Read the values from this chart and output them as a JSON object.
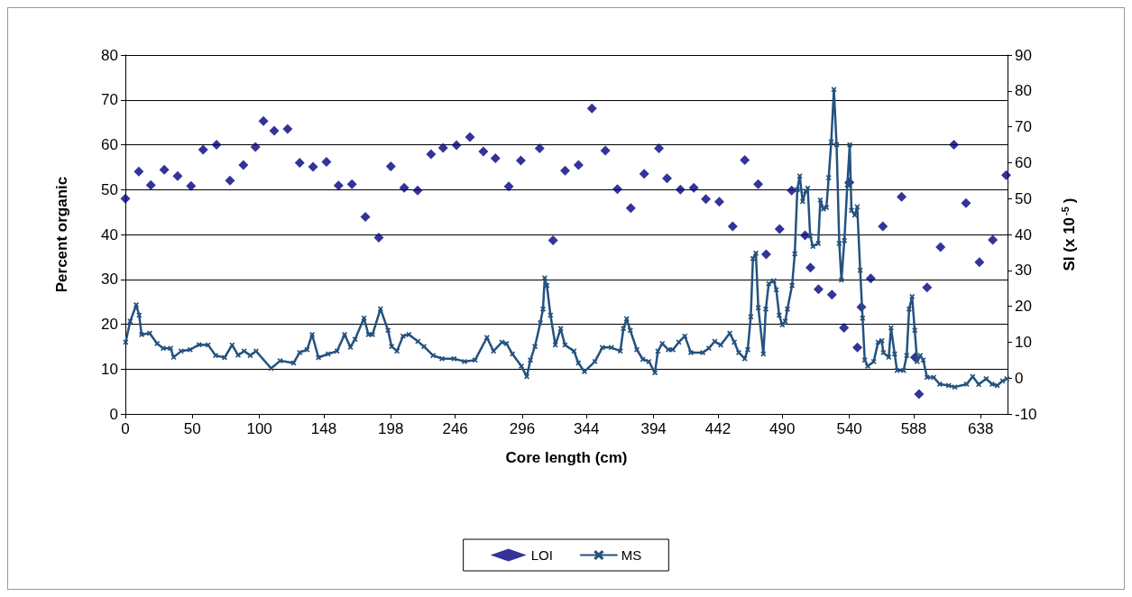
{
  "chart_data": {
    "type": "scatter",
    "xlabel": "Core length (cm)",
    "ylabel": "Percent organic",
    "y2label": "SI (x 10$^{-5}$)",
    "xlim": [
      0,
      658
    ],
    "xticks": [
      0,
      50,
      100,
      148,
      198,
      246,
      296,
      344,
      394,
      442,
      490,
      540,
      588,
      638
    ],
    "ylim": [
      0,
      80
    ],
    "yticks": [
      0,
      10,
      20,
      30,
      40,
      50,
      60,
      70,
      80
    ],
    "y2lim": [
      -10,
      90
    ],
    "y2ticks": [
      -10,
      0,
      10,
      20,
      30,
      40,
      50,
      60,
      70,
      80,
      90
    ],
    "grid": "y",
    "legend": "bottom",
    "series": [
      {
        "name": "LOI",
        "marker": "diamond",
        "color": "#000080",
        "x": [
          0,
          10,
          19,
          29,
          39,
          49,
          58,
          68,
          78,
          88,
          97,
          103,
          111,
          121,
          130,
          140,
          150,
          159,
          169,
          179,
          189,
          198,
          208,
          218,
          228,
          237,
          247,
          257,
          267,
          276,
          286,
          295,
          309,
          319,
          328,
          338,
          348,
          358,
          367,
          377,
          387,
          398,
          404,
          414,
          424,
          433,
          443,
          453,
          462,
          472,
          478,
          488,
          497,
          507,
          511,
          517,
          527,
          536,
          540,
          546,
          549,
          556,
          565,
          579,
          589,
          592,
          598,
          608,
          618,
          627,
          637,
          647,
          657
        ],
        "values": [
          48.0,
          54.0,
          51.0,
          54.4,
          53.0,
          50.8,
          58.9,
          60.0,
          52.0,
          55.5,
          59.5,
          65.3,
          63.1,
          63.5,
          56.0,
          55.1,
          56.2,
          50.9,
          51.2,
          43.9,
          39.3,
          55.2,
          50.4,
          49.8,
          57.9,
          59.3,
          59.9,
          61.7,
          58.5,
          57.0,
          50.7,
          56.5,
          59.2,
          38.7,
          54.2,
          55.5,
          68.1,
          58.7,
          50.1,
          45.9,
          53.5,
          59.2,
          52.5,
          50.0,
          50.4,
          47.9,
          47.3,
          41.8,
          56.6,
          51.2,
          35.6,
          41.2,
          49.8,
          39.8,
          32.6,
          27.8,
          26.6,
          19.2,
          51.6,
          14.8,
          23.8,
          30.2,
          41.8,
          48.4,
          12.6,
          4.4,
          28.2,
          37.2,
          60.0,
          47.0,
          33.8,
          38.8,
          53.2
        ]
      },
      {
        "name": "MS",
        "type": "line",
        "axis": "y2",
        "marker": "cross",
        "line_style": "solid",
        "color": "#24527f",
        "x": [
          0.2,
          3.6,
          8.1,
          10.3,
          12.1,
          18.1,
          23.7,
          28.2,
          33.7,
          36,
          41.6,
          48.3,
          55,
          61.7,
          67.3,
          74,
          79.6,
          84.1,
          88.6,
          93.1,
          97.5,
          108.7,
          115.4,
          125.5,
          130,
          135.5,
          139.3,
          144,
          151.2,
          157.9,
          163.5,
          167.9,
          171.3,
          178,
          181.3,
          184.3,
          190.3,
          195.9,
          198.6,
          202.6,
          207.1,
          211.5,
          218.2,
          222.7,
          229.5,
          236.2,
          245.1,
          252.9,
          260.8,
          269.7,
          274.6,
          280.9,
          284.3,
          288.7,
          295.4,
          299.4,
          302.1,
          305.5,
          309.5,
          311.5,
          312.8,
          314.4,
          317.1,
          320.7,
          324.7,
          327.9,
          334.6,
          337.9,
          342.4,
          350.2,
          355.8,
          362.5,
          369.2,
          371.5,
          373.9,
          376.6,
          381.5,
          386,
          390.5,
          395,
          397.2,
          400.5,
          405,
          408.4,
          412.8,
          417.3,
          421.8,
          430.7,
          435.2,
          439.6,
          444.1,
          450.8,
          454.2,
          457.5,
          462,
          464.2,
          466.5,
          468.1,
          470.3,
          472.1,
          475.9,
          477.7,
          479.9,
          483.7,
          485.5,
          487.7,
          490,
          492.2,
          493.8,
          497.3,
          499.3,
          501.2,
          503,
          505.2,
          507.4,
          509,
          510.8,
          512.8,
          516.8,
          518.4,
          520.7,
          522.9,
          524.6,
          526.5,
          528.5,
          530.5,
          532.5,
          534.1,
          536.3,
          538.5,
          540.3,
          541.6,
          544.1,
          545.9,
          548.1,
          549.9,
          551.5,
          553.7,
          558.2,
          561.5,
          564.2,
          565.4,
          569.4,
          571.1,
          573.8,
          575.6,
          580.5,
          582.8,
          584.6,
          586.8,
          588.8,
          590.6,
          592.9,
          595.1,
          598,
          602.9,
          607.4,
          614.1,
          618.6,
          627.5,
          632,
          636.5,
          642.1,
          646.5,
          650.3,
          654.3,
          657.5
        ],
        "values": [
          10,
          15.8,
          20.4,
          17.5,
          12.1,
          12.5,
          9.6,
          8.3,
          8.3,
          5.8,
          7.5,
          7.9,
          9.3,
          9.2,
          6.3,
          5.7,
          9.2,
          6.4,
          7.5,
          6.3,
          7.5,
          2.7,
          4.8,
          4.2,
          7.1,
          7.9,
          12.1,
          5.7,
          6.7,
          7.5,
          12.1,
          8.6,
          10.8,
          16.7,
          12.1,
          12.1,
          19.3,
          13.3,
          8.8,
          7.5,
          11.7,
          12.1,
          10.2,
          8.8,
          6.3,
          5.4,
          5.4,
          4.6,
          5,
          11.3,
          7.5,
          10,
          9.6,
          6.7,
          3.3,
          0.4,
          5,
          8.8,
          15.4,
          19.2,
          27.9,
          25.8,
          17.5,
          9.2,
          13.8,
          9.2,
          7.5,
          4.2,
          1.8,
          4.6,
          8.5,
          8.5,
          7.5,
          13.8,
          16.5,
          13.3,
          7.9,
          5.2,
          4.6,
          1.5,
          7.5,
          9.6,
          7.9,
          7.9,
          10,
          11.7,
          7.1,
          7.1,
          8.3,
          10.2,
          9.2,
          12.5,
          10,
          7.1,
          5.4,
          7.9,
          17.1,
          33.3,
          34.8,
          19.6,
          6.7,
          19.2,
          26.3,
          27.1,
          24.6,
          17.5,
          14.8,
          15.8,
          19.2,
          25.8,
          34.6,
          52.5,
          56.3,
          49.2,
          52.1,
          52.9,
          39.6,
          36.7,
          37.5,
          49.6,
          47.1,
          47.5,
          55.8,
          65.8,
          80.4,
          65,
          37.5,
          27.3,
          38.3,
          53.8,
          65,
          46.7,
          45.4,
          47.7,
          30,
          16.7,
          5,
          3.3,
          4.6,
          10,
          10.4,
          7.1,
          5.8,
          14,
          6.7,
          2.1,
          2.1,
          6.3,
          19.2,
          22.7,
          13.3,
          4.6,
          6.3,
          5,
          0.2,
          0.2,
          -1.7,
          -2.1,
          -2.5,
          -1.7,
          0.4,
          -1.8,
          -0.2,
          -1.7,
          -2.1,
          -0.8,
          -0.2
        ]
      }
    ]
  }
}
